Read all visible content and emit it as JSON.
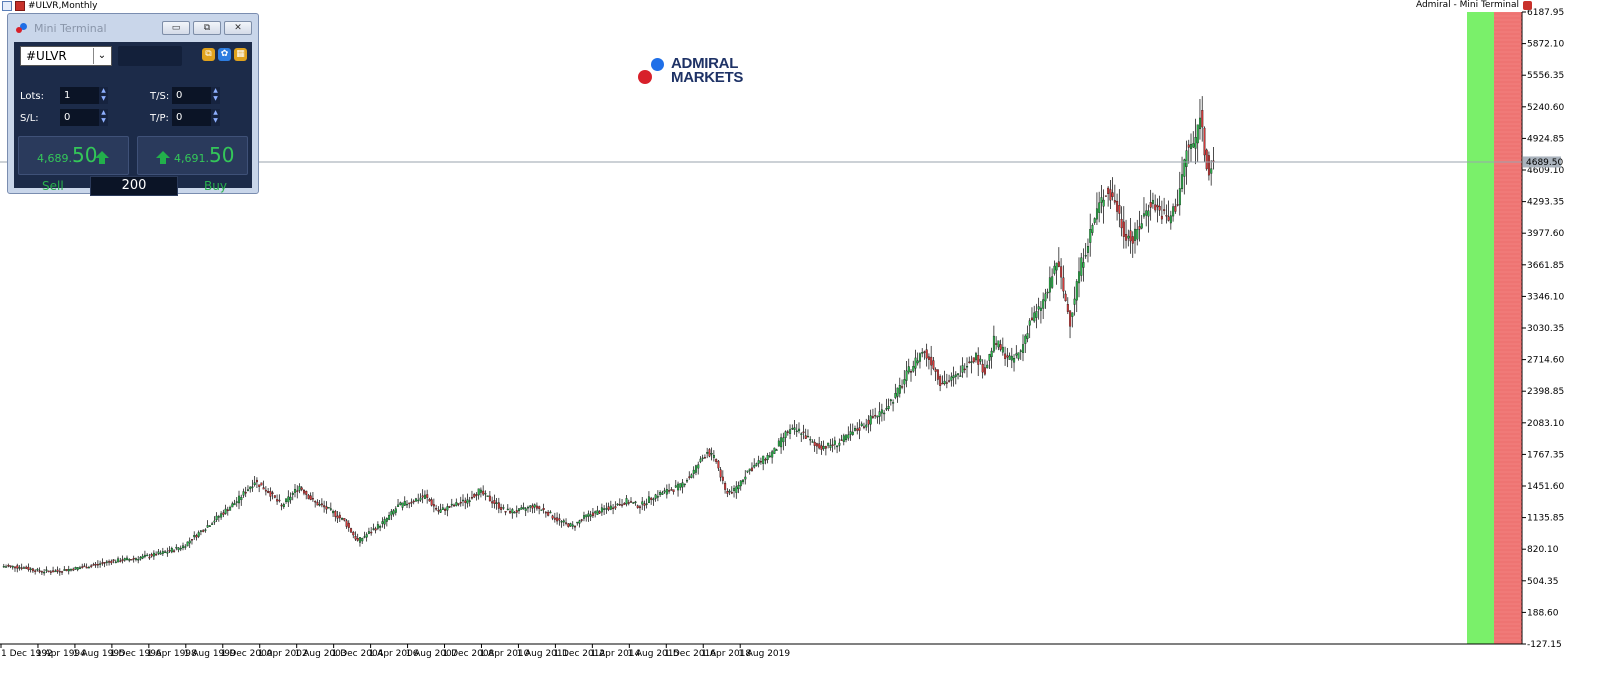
{
  "window": {
    "title": "#ULVR,Monthly",
    "broker_label": "Admiral - Mini Terminal"
  },
  "colors": {
    "bull": "#2ab24a",
    "bear": "#d23a3a",
    "green_zone": "#7af06a",
    "red_zone": "#f07a78",
    "accent": "#1c2b49"
  },
  "mini_terminal": {
    "title": "Mini Terminal",
    "symbol": "#ULVR",
    "lots_label": "Lots:",
    "lots_value": "1",
    "sl_label": "S/L:",
    "sl_value": "0",
    "ts_label": "T/S:",
    "ts_value": "0",
    "tp_label": "T/P:",
    "tp_value": "0",
    "sell_price_small": "4,689.",
    "sell_price_big": "50",
    "buy_price_small": "4,691.",
    "buy_price_big": "50",
    "sell_label": "Sell",
    "buy_label": "Buy",
    "spread": "200",
    "icons": [
      "copy-icon",
      "settings-gear-icon",
      "grid-icon"
    ]
  },
  "logo": {
    "line1": "ADMIRAL",
    "line2": "MARKETS"
  },
  "chart_data": {
    "type": "candlestick",
    "symbol": "#ULVR",
    "timeframe": "Monthly",
    "ylim": [
      -127.15,
      6187.95
    ],
    "y_ticks": [
      "6187.95",
      "5872.10",
      "5556.35",
      "5240.60",
      "4924.85",
      "4609.10",
      "4293.35",
      "3977.60",
      "3661.85",
      "3346.10",
      "3030.35",
      "2714.60",
      "2398.85",
      "2083.10",
      "1767.35",
      "1451.60",
      "1135.85",
      "820.10",
      "504.35",
      "188.60",
      "-127.15"
    ],
    "x_ticks": [
      "1 Dec 1992",
      "1 Apr 1994",
      "1 Aug 1995",
      "1 Dec 1996",
      "1 Apr 1998",
      "1 Aug 1999",
      "1 Dec 2000",
      "1 Apr 2002",
      "1 Aug 2003",
      "1 Dec 2004",
      "1 Apr 2006",
      "1 Aug 2007",
      "1 Dec 2008",
      "1 Apr 2010",
      "1 Aug 2011",
      "1 Dec 2012",
      "1 Apr 2014",
      "1 Aug 2015",
      "1 Dec 2016",
      "1 Apr 2018",
      "1 Aug 2019"
    ],
    "current_price": 4689.5,
    "current_price_label": "4689.50",
    "close_path": [
      [
        0,
        650
      ],
      [
        8,
        640
      ],
      [
        16,
        600
      ],
      [
        24,
        600
      ],
      [
        32,
        630
      ],
      [
        40,
        660
      ],
      [
        48,
        700
      ],
      [
        56,
        720
      ],
      [
        64,
        750
      ],
      [
        72,
        790
      ],
      [
        80,
        850
      ],
      [
        88,
        1000
      ],
      [
        96,
        1150
      ],
      [
        104,
        1300
      ],
      [
        112,
        1500
      ],
      [
        118,
        1400
      ],
      [
        124,
        1250
      ],
      [
        132,
        1450
      ],
      [
        138,
        1300
      ],
      [
        146,
        1200
      ],
      [
        152,
        1100
      ],
      [
        158,
        900
      ],
      [
        164,
        1000
      ],
      [
        170,
        1100
      ],
      [
        176,
        1250
      ],
      [
        182,
        1300
      ],
      [
        188,
        1350
      ],
      [
        194,
        1200
      ],
      [
        200,
        1250
      ],
      [
        206,
        1300
      ],
      [
        212,
        1400
      ],
      [
        218,
        1300
      ],
      [
        224,
        1200
      ],
      [
        230,
        1200
      ],
      [
        236,
        1250
      ],
      [
        242,
        1200
      ],
      [
        248,
        1100
      ],
      [
        254,
        1050
      ],
      [
        260,
        1150
      ],
      [
        266,
        1200
      ],
      [
        272,
        1250
      ],
      [
        278,
        1300
      ],
      [
        284,
        1250
      ],
      [
        290,
        1350
      ],
      [
        296,
        1400
      ],
      [
        302,
        1450
      ],
      [
        308,
        1600
      ],
      [
        314,
        1800
      ],
      [
        318,
        1700
      ],
      [
        322,
        1400
      ],
      [
        326,
        1400
      ],
      [
        332,
        1600
      ],
      [
        338,
        1700
      ],
      [
        344,
        1800
      ],
      [
        350,
        2000
      ],
      [
        356,
        2000
      ],
      [
        362,
        1850
      ],
      [
        368,
        1850
      ],
      [
        374,
        1900
      ],
      [
        380,
        2000
      ],
      [
        386,
        2100
      ],
      [
        392,
        2200
      ],
      [
        398,
        2350
      ],
      [
        404,
        2600
      ],
      [
        410,
        2800
      ],
      [
        414,
        2700
      ],
      [
        418,
        2500
      ],
      [
        422,
        2500
      ],
      [
        426,
        2550
      ],
      [
        430,
        2700
      ],
      [
        434,
        2750
      ],
      [
        438,
        2600
      ],
      [
        442,
        2900
      ],
      [
        446,
        2800
      ],
      [
        450,
        2700
      ],
      [
        454,
        2800
      ],
      [
        458,
        3100
      ],
      [
        462,
        3200
      ],
      [
        466,
        3400
      ],
      [
        470,
        3700
      ],
      [
        473,
        3400
      ],
      [
        476,
        3100
      ],
      [
        480,
        3600
      ],
      [
        484,
        3900
      ],
      [
        488,
        4200
      ],
      [
        492,
        4400
      ],
      [
        496,
        4300
      ],
      [
        500,
        4000
      ],
      [
        504,
        3900
      ],
      [
        508,
        4100
      ],
      [
        512,
        4300
      ],
      [
        516,
        4200
      ],
      [
        520,
        4100
      ],
      [
        524,
        4300
      ],
      [
        528,
        4800
      ],
      [
        532,
        4900
      ],
      [
        534,
        5200
      ],
      [
        536,
        4800
      ],
      [
        538,
        4600
      ],
      [
        540,
        4689.5
      ]
    ]
  }
}
